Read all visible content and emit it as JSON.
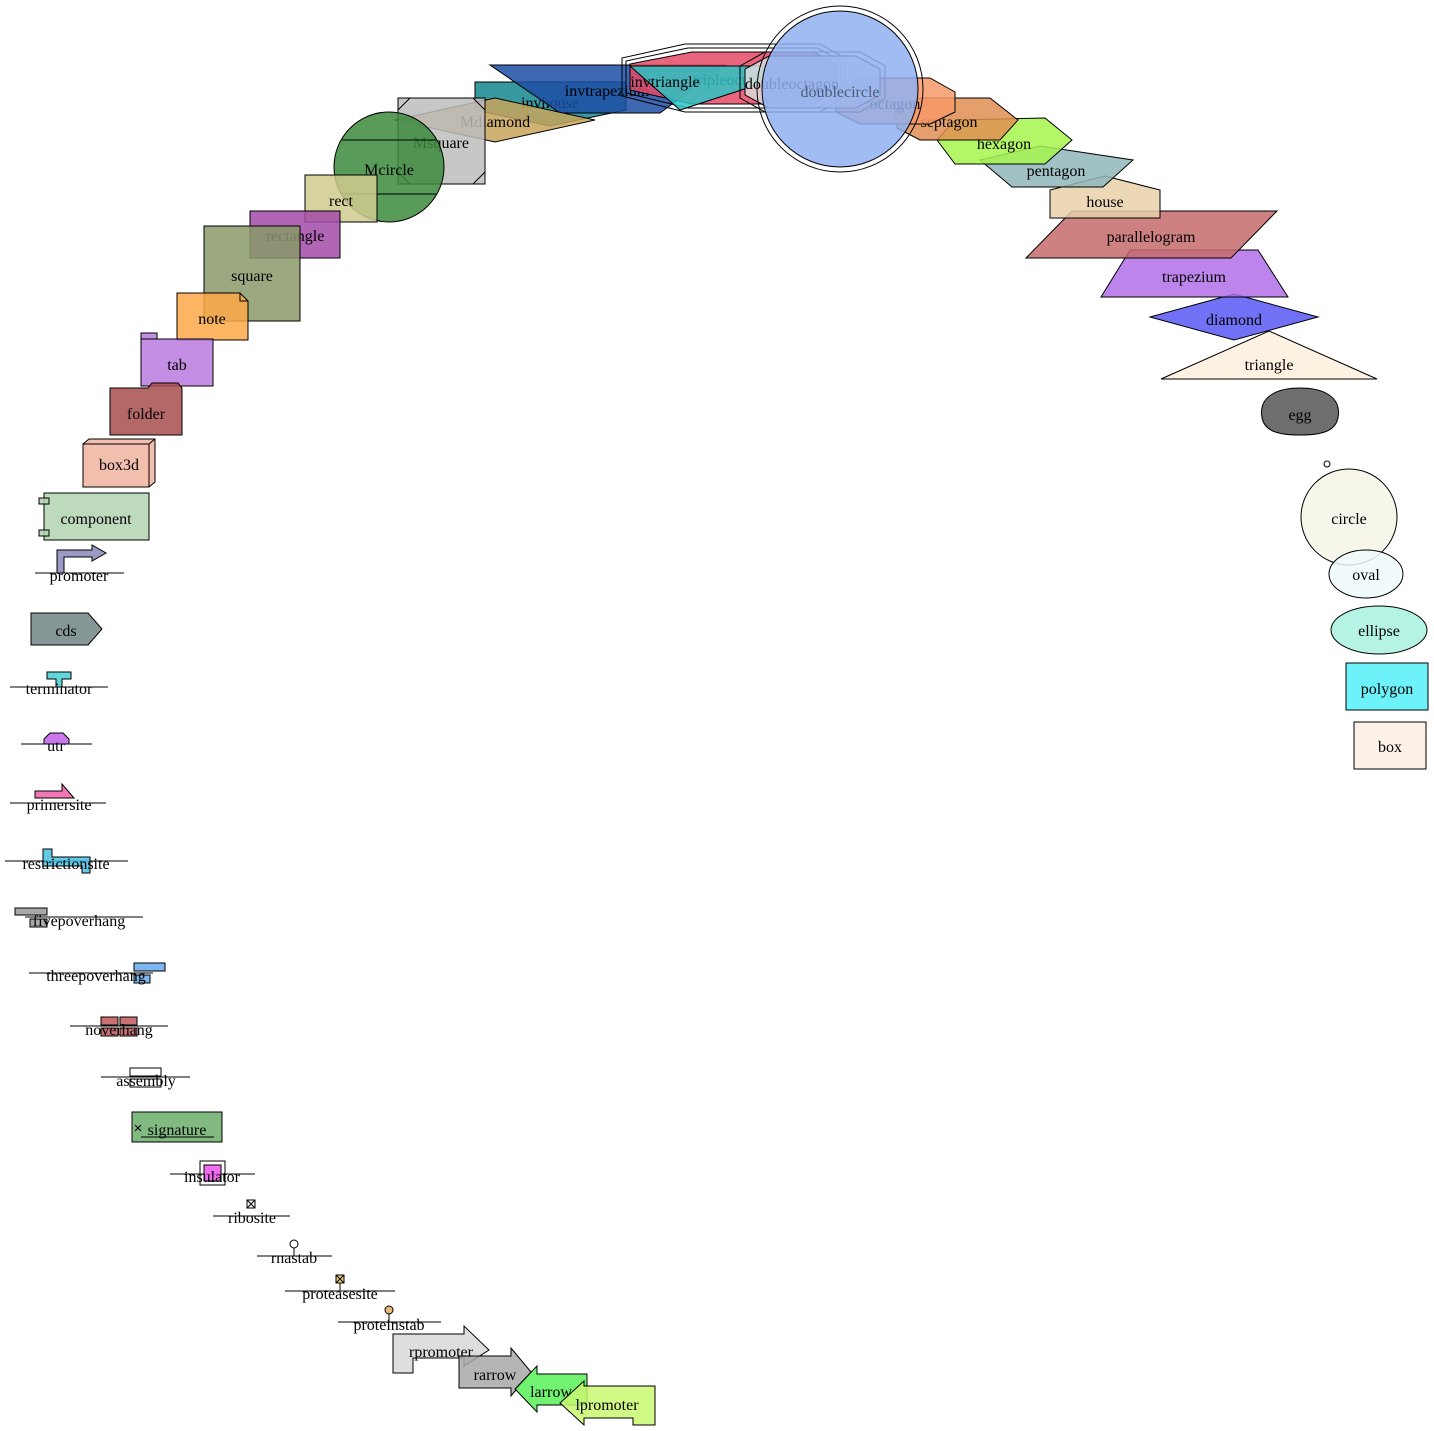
{
  "nodes": [
    {
      "name": "box",
      "color": "#fbefe2"
    },
    {
      "name": "polygon",
      "color": "#55f0f8"
    },
    {
      "name": "ellipse",
      "color": "#a8f2e0"
    },
    {
      "name": "oval",
      "color": "#f0fafc"
    },
    {
      "name": "circle",
      "color": "#f6f5e8"
    },
    {
      "name": "egg",
      "color": "#555555"
    },
    {
      "name": "triangle",
      "color": "#fdefdc"
    },
    {
      "name": "diamond",
      "color": "#5858f4"
    },
    {
      "name": "trapezium",
      "color": "#b170e8"
    },
    {
      "name": "parallelogram",
      "color": "#c56b6b"
    },
    {
      "name": "house",
      "color": "#e9d0aa"
    },
    {
      "name": "pentagon",
      "color": "#8fb7bb"
    },
    {
      "name": "hexagon",
      "color": "#a6f64e"
    },
    {
      "name": "septagon",
      "color": "#e08e52"
    },
    {
      "name": "octagon",
      "color": "#f79968"
    },
    {
      "name": "doublecircle",
      "color": "#8fb0f0"
    },
    {
      "name": "doubleoctagon",
      "color": "#dcdcdc"
    },
    {
      "name": "tripleoctagon",
      "color": "#e54a66"
    },
    {
      "name": "invtriangle",
      "color": "#2dc4c4"
    },
    {
      "name": "invtrapezium",
      "color": "#1d4ea4"
    },
    {
      "name": "invhouse",
      "color": "#15868e"
    },
    {
      "name": "Mdiamond",
      "color": "#c7a35b"
    },
    {
      "name": "Msquare",
      "color": "#bdbdbd"
    },
    {
      "name": "Mcircle",
      "color": "#3c8a3c"
    },
    {
      "name": "rect",
      "color": "#cfcb8e"
    },
    {
      "name": "rectangle",
      "color": "#a24aa8"
    },
    {
      "name": "square",
      "color": "#8a996a"
    },
    {
      "name": "note",
      "color": "#fca848"
    },
    {
      "name": "tab",
      "color": "#bb7ae0"
    },
    {
      "name": "folder",
      "color": "#a84e4e"
    },
    {
      "name": "box3d",
      "color": "#f0b4a0"
    },
    {
      "name": "component",
      "color": "#b2d4b2"
    },
    {
      "name": "promoter",
      "color": "#8888bb"
    },
    {
      "name": "cds",
      "color": "#708585"
    },
    {
      "name": "terminator",
      "color": "#46cfd4"
    },
    {
      "name": "utr",
      "color": "#c060e8"
    },
    {
      "name": "primersite",
      "color": "#f060a8"
    },
    {
      "name": "restrictionsite",
      "color": "#48c0e0"
    },
    {
      "name": "fivepoverhang",
      "color": "#999999"
    },
    {
      "name": "threepoverhang",
      "color": "#66aaee"
    },
    {
      "name": "noverhang",
      "color": "#c05858"
    },
    {
      "name": "assembly",
      "color": "#ffffff"
    },
    {
      "name": "signature",
      "color": "#6aae6a"
    },
    {
      "name": "insulator",
      "color": "#ee55ee"
    },
    {
      "name": "ribosite",
      "color": "#ffffff"
    },
    {
      "name": "rnastab",
      "color": "#ffffff"
    },
    {
      "name": "proteasesite",
      "color": "#f4d050"
    },
    {
      "name": "proteinstab",
      "color": "#e4b060"
    },
    {
      "name": "rpromoter",
      "color": "#d8d8d8"
    },
    {
      "name": "rarrow",
      "color": "#a8a8a8"
    },
    {
      "name": "larrow",
      "color": "#58f058"
    },
    {
      "name": "lpromoter",
      "color": "#c8f870"
    }
  ]
}
